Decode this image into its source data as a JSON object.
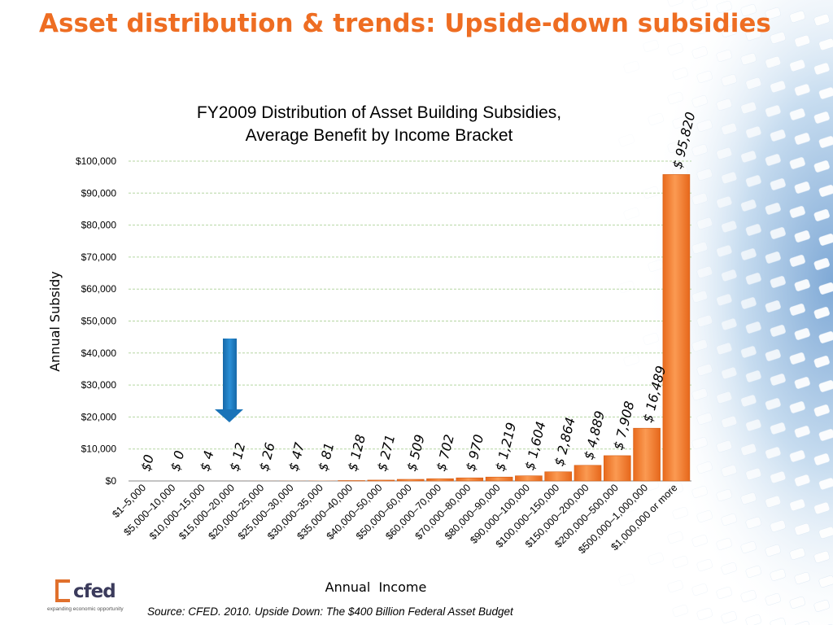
{
  "slide": {
    "title": "Asset distribution & trends: Upside-down subsidies",
    "source": "Source: CFED. 2010. Upside Down: The $400 Billion Federal Asset Budget",
    "logo": {
      "word": "cfed",
      "tagline": "expanding economic opportunity"
    }
  },
  "colors": {
    "title": "#ee6d22",
    "bar": "#f7873c",
    "arrow": "#1f7bbf",
    "grid": "#b5d6a2"
  },
  "chart_data": {
    "type": "bar",
    "title_lines": [
      "FY2009 Distribution of Asset Building Subsidies,",
      "Average Benefit by Income Bracket"
    ],
    "xlabel": "Annual  Income",
    "ylabel": "Annual Subsidy",
    "ylim": [
      0,
      100000
    ],
    "grid": true,
    "y_ticks": [
      {
        "value": 0,
        "label": "$0"
      },
      {
        "value": 10000,
        "label": "$10,000"
      },
      {
        "value": 20000,
        "label": "$20,000"
      },
      {
        "value": 30000,
        "label": "$30,000"
      },
      {
        "value": 40000,
        "label": "$40,000"
      },
      {
        "value": 50000,
        "label": "$50,000"
      },
      {
        "value": 60000,
        "label": "$60,000"
      },
      {
        "value": 70000,
        "label": "$70,000"
      },
      {
        "value": 80000,
        "label": "$80,000"
      },
      {
        "value": 90000,
        "label": "$90,000"
      },
      {
        "value": 100000,
        "label": "$100,000"
      }
    ],
    "categories": [
      "$1–5,000",
      "$5,000–10,000",
      "$10,000–15,000",
      "$15,000–20,000",
      "$20,000–25,000",
      "$25,000–30,000",
      "$30,000–35,000",
      "$35,000–40,000",
      "$40,000–50,000",
      "$50,000–60,000",
      "$60,000–70,000",
      "$70,000–80,000",
      "$80,000–90,000",
      "$90,000–100,000",
      "$100,000–150,000",
      "$150,000–200,000",
      "$200,000–500,000",
      "$500,000–1,000,000",
      "$1,000,000 or more"
    ],
    "values": [
      0,
      0,
      4,
      12,
      26,
      47,
      81,
      128,
      271,
      509,
      702,
      970,
      1219,
      1604,
      2864,
      4889,
      7908,
      16489,
      95820
    ],
    "data_labels": [
      "$0",
      "$ 0",
      "$ 4",
      "$ 12",
      "$ 26",
      "$ 47",
      "$ 81",
      "$ 128",
      "$ 271",
      "$ 509",
      "$ 702",
      "$ 970",
      "$ 1,219",
      "$ 1,604",
      "$ 2,864",
      "$ 4,889",
      "$ 7,908",
      "$ 16,489",
      "$ 95,820"
    ],
    "annotation": {
      "type": "arrow",
      "points_to_category": "$15,000–20,000"
    }
  }
}
